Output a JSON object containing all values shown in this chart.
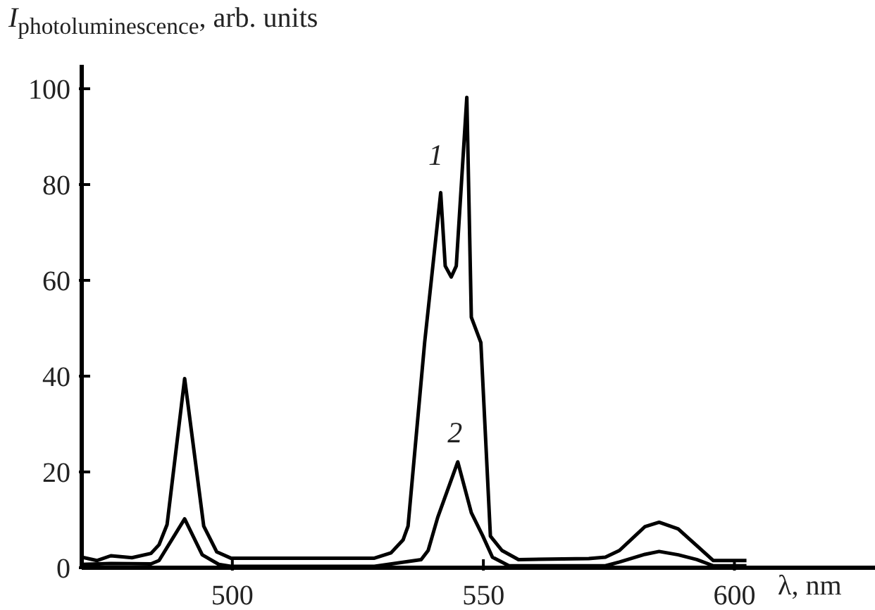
{
  "chart_data": {
    "type": "line",
    "ylabel": "I$_{photoluminescence}$, arb. units",
    "xlabel": "λ, nm",
    "xlim": [
      470,
      628
    ],
    "xticks": [
      500,
      550,
      600
    ],
    "ylim": [
      0,
      105
    ],
    "yticks": [
      0,
      20,
      40,
      60,
      80,
      100
    ],
    "grid": false,
    "legend": false,
    "marker": "none",
    "line_style": "solid",
    "series": [
      {
        "name": "1",
        "color": "#000000",
        "x": [
          470,
          473,
          475.8,
          480,
          483.8,
          485.4,
          487,
          490.5,
          494.3,
          496.9,
          499.7,
          528.3,
          531.6,
          534,
          535,
          538.3,
          541.5,
          542.4,
          543.6,
          544.6,
          546.7,
          547.6,
          549.5,
          551.4,
          553.7,
          557,
          571,
          574.3,
          577.1,
          582.2,
          585,
          588.8,
          592.5,
          595.8,
          602.4
        ],
        "values": [
          2.2,
          1.5,
          2.5,
          2.1,
          3,
          4.8,
          9,
          39.5,
          8.7,
          3.3,
          2,
          2,
          3.1,
          5.8,
          8.7,
          47,
          78.3,
          63,
          60.7,
          63,
          98.2,
          52.3,
          47,
          6.6,
          3.6,
          1.7,
          1.9,
          2.2,
          3.6,
          8.6,
          9.5,
          8.1,
          4.6,
          1.5,
          1.5
        ]
      },
      {
        "name": "2",
        "color": "#000000",
        "x": [
          470,
          475.8,
          483.8,
          485.4,
          490.5,
          494,
          497.3,
          499.7,
          528.3,
          537.6,
          539,
          540.9,
          544.9,
          547.6,
          549.9,
          551.8,
          555.1,
          574.3,
          577.1,
          582.2,
          585,
          588.8,
          592.5,
          595.8,
          602.4
        ],
        "values": [
          0.7,
          0.9,
          0.8,
          1.5,
          10.2,
          2.7,
          0.7,
          0.3,
          0.3,
          1.7,
          3.6,
          10.5,
          22.1,
          11.5,
          6.6,
          2.2,
          0.4,
          0.4,
          1.2,
          2.8,
          3.4,
          2.7,
          1.7,
          0.4,
          0.4
        ]
      }
    ]
  }
}
